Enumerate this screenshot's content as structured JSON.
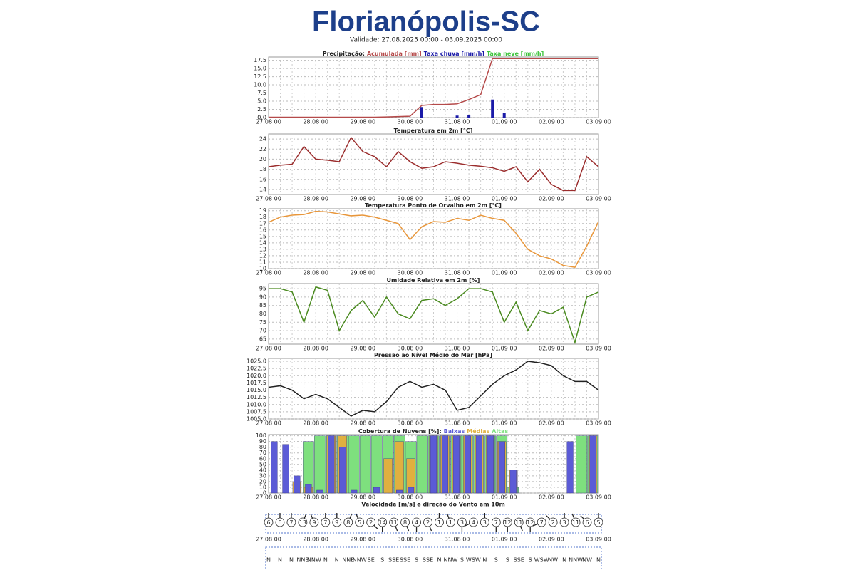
{
  "header": {
    "title": "Florianópolis-SC",
    "validity": "Validade: 27.08.2025 00:00 - 03.09.2025 00:00"
  },
  "chart_data": [
    {
      "type": "combo",
      "title": "Precipitação:",
      "categories": [
        "27.08 00",
        null,
        null,
        null,
        "28.08 00",
        null,
        null,
        null,
        "29.08 00",
        null,
        null,
        null,
        "30.08 00",
        null,
        null,
        null,
        "31.08 00",
        null,
        null,
        null,
        "01.09 00",
        null,
        null,
        null,
        "02.09 00",
        null,
        null,
        null,
        "03.09 00"
      ],
      "series": [
        {
          "name": "Acumulada [mm]",
          "type": "line",
          "color": "#b54a4a",
          "values": [
            0.1,
            0.1,
            0.1,
            0.1,
            0.1,
            0.1,
            0.1,
            0.1,
            0.1,
            0.1,
            0.2,
            0.3,
            0.4,
            3.7,
            4,
            4,
            4.2,
            5.5,
            7,
            18,
            18,
            18,
            18,
            18,
            18,
            18,
            18,
            18,
            18
          ]
        },
        {
          "name": "Taxa chuva [mm/h]",
          "type": "bar",
          "color": "#1a1aa8",
          "values": [
            0,
            0,
            0,
            0,
            0,
            0,
            0,
            0,
            0,
            0,
            0,
            0,
            0,
            3.2,
            0,
            0,
            0.6,
            0.8,
            0,
            5.5,
            1.5,
            0,
            0,
            0,
            0,
            0,
            0,
            0,
            0
          ]
        },
        {
          "name": "Taxa neve [mm/h]",
          "type": "bar",
          "color": "#3ec43e",
          "values": [
            0,
            0,
            0,
            0,
            0,
            0,
            0,
            0,
            0,
            0,
            0,
            0,
            0,
            0,
            0,
            0,
            0,
            0,
            0,
            0,
            0,
            0,
            0,
            0,
            0,
            0,
            0,
            0,
            0
          ]
        }
      ],
      "ylim": [
        0,
        18.5
      ],
      "yticks": [
        {
          "value": 0,
          "label": "0.0"
        },
        2.5,
        {
          "value": 5,
          "label": "5.0"
        },
        7.5,
        {
          "value": 10,
          "label": "10.0"
        },
        12.5,
        {
          "value": 15,
          "label": "15.0"
        },
        17.5
      ],
      "grid": true
    },
    {
      "type": "line",
      "title": "Temperatura em 2m [°C]",
      "categories": [
        "27.08 00",
        null,
        null,
        null,
        "28.08 00",
        null,
        null,
        null,
        "29.08 00",
        null,
        null,
        null,
        "30.08 00",
        null,
        null,
        null,
        "31.08 00",
        null,
        null,
        null,
        "01.09 00",
        null,
        null,
        null,
        "02.09 00",
        null,
        null,
        null,
        "03.09 00"
      ],
      "series": [
        {
          "color": "#9b2d2d",
          "values": [
            18.5,
            18.8,
            19,
            22.5,
            20,
            19.8,
            19.5,
            24.3,
            21.5,
            20.5,
            18.5,
            21.5,
            19.5,
            18.2,
            18.5,
            19.5,
            19.2,
            18.8,
            18.6,
            18.3,
            17.6,
            18.5,
            15.5,
            18,
            15,
            13.8,
            13.8,
            20.5,
            18.5
          ]
        }
      ],
      "ylim": [
        13,
        25
      ],
      "yticks": [
        14,
        16,
        18,
        20,
        22,
        24
      ],
      "grid": true
    },
    {
      "type": "line",
      "title": "Temperatura Ponto de Orvalho em 2m [°C]",
      "categories": [
        "27.08 00",
        null,
        null,
        null,
        "28.08 00",
        null,
        null,
        null,
        "29.08 00",
        null,
        null,
        null,
        "30.08 00",
        null,
        null,
        null,
        "31.08 00",
        null,
        null,
        null,
        "01.09 00",
        null,
        null,
        null,
        "02.09 00",
        null,
        null,
        null,
        "03.09 00"
      ],
      "series": [
        {
          "color": "#e8963a",
          "values": [
            17.2,
            18,
            18.3,
            18.4,
            18.9,
            18.8,
            18.5,
            18.2,
            18.3,
            18,
            17.5,
            17,
            14.5,
            16.5,
            17.3,
            17.2,
            17.8,
            17.5,
            18.3,
            17.8,
            17.5,
            15.5,
            13,
            12,
            11.5,
            10.5,
            10.2,
            13.5,
            17.3
          ]
        }
      ],
      "ylim": [
        10,
        19.3
      ],
      "yticks": [
        10,
        11,
        12,
        13,
        14,
        15,
        16,
        17,
        18,
        19
      ],
      "grid": true
    },
    {
      "type": "line",
      "title": "Umidade Relativa em 2m [%]",
      "categories": [
        "27.08 00",
        null,
        null,
        null,
        "28.08 00",
        null,
        null,
        null,
        "29.08 00",
        null,
        null,
        null,
        "30.08 00",
        null,
        null,
        null,
        "31.08 00",
        null,
        null,
        null,
        "01.09 00",
        null,
        null,
        null,
        "02.09 00",
        null,
        null,
        null,
        "03.09 00"
      ],
      "series": [
        {
          "color": "#4a8a1f",
          "values": [
            95,
            95,
            93,
            75,
            96,
            94,
            70,
            82,
            88,
            78,
            90,
            80,
            77,
            88,
            89,
            85,
            89,
            95,
            95,
            93,
            75,
            87,
            70,
            82,
            80,
            84,
            63,
            90,
            93
          ]
        }
      ],
      "ylim": [
        62,
        98
      ],
      "yticks": [
        65,
        70,
        75,
        80,
        85,
        90,
        95
      ],
      "grid": true
    },
    {
      "type": "line",
      "title": "Pressão ao Nível Médio do Mar [hPa]",
      "categories": [
        "27.08 00",
        null,
        null,
        null,
        "28.08 00",
        null,
        null,
        null,
        "29.08 00",
        null,
        null,
        null,
        "30.08 00",
        null,
        null,
        null,
        "31.08 00",
        null,
        null,
        null,
        "01.09 00",
        null,
        null,
        null,
        "02.09 00",
        null,
        null,
        null,
        "03.09 00"
      ],
      "series": [
        {
          "color": "#222222",
          "values": [
            1016,
            1016.5,
            1015,
            1012,
            1013.5,
            1012,
            1009,
            1006,
            1008,
            1007.5,
            1011,
            1016,
            1018,
            1016,
            1017,
            1015,
            1008,
            1009,
            1013,
            1017,
            1020,
            1022,
            1025,
            1024.5,
            1023.5,
            1020,
            1018,
            1018,
            1015
          ]
        }
      ],
      "ylim": [
        1005,
        1026
      ],
      "yticks": [
        {
          "value": 1005,
          "label": "1005.0"
        },
        1007.5,
        {
          "value": 1010,
          "label": "1010.0"
        },
        1012.5,
        {
          "value": 1015,
          "label": "1015.0"
        },
        1017.5,
        {
          "value": 1020,
          "label": "1020.0"
        },
        1022.5,
        {
          "value": 1025,
          "label": "1025.0"
        }
      ],
      "grid": true
    },
    {
      "type": "bar",
      "title": "Cobertura de Nuvens [%]:",
      "categories": [
        "27.08 00",
        null,
        null,
        null,
        "28.08 00",
        null,
        null,
        null,
        "29.08 00",
        null,
        null,
        null,
        "30.08 00",
        null,
        null,
        null,
        "31.08 00",
        null,
        null,
        null,
        "01.09 00",
        null,
        null,
        null,
        "02.09 00",
        null,
        null,
        null,
        "03.09 00"
      ],
      "series": [
        {
          "name": "Baixas",
          "color": "#5b5bd6",
          "values": [
            90,
            85,
            30,
            15,
            5,
            100,
            80,
            5,
            0,
            10,
            0,
            5,
            10,
            0,
            100,
            100,
            100,
            100,
            100,
            100,
            90,
            40,
            0,
            0,
            0,
            0,
            90,
            0,
            100
          ]
        },
        {
          "name": "Médias",
          "color": "#e0b040",
          "values": [
            0,
            0,
            20,
            10,
            0,
            100,
            100,
            0,
            0,
            0,
            60,
            90,
            60,
            0,
            100,
            100,
            100,
            100,
            100,
            100,
            90,
            40,
            0,
            0,
            0,
            0,
            0,
            0,
            100
          ]
        },
        {
          "name": "Altas",
          "color": "#7ee07e",
          "values": [
            0,
            0,
            0,
            90,
            100,
            100,
            100,
            100,
            100,
            100,
            100,
            100,
            90,
            100,
            100,
            100,
            100,
            100,
            100,
            100,
            100,
            10,
            0,
            0,
            0,
            0,
            0,
            100,
            100
          ]
        }
      ],
      "ylim": [
        0,
        102
      ],
      "yticks": [
        0,
        10,
        20,
        30,
        40,
        50,
        60,
        70,
        80,
        90,
        100
      ],
      "grid": true
    },
    {
      "type": "wind",
      "title": "Velocidade [m/s] e direção do Vento em 10m",
      "values": [
        6,
        6,
        7,
        13,
        9,
        7,
        9,
        8,
        5,
        2,
        14,
        11,
        8,
        4,
        2,
        1,
        1,
        3,
        4,
        3,
        7,
        12,
        11,
        12,
        7,
        2,
        3,
        11,
        6,
        5
      ],
      "categories": [
        "N",
        "N",
        "N",
        "NNE",
        "NNW",
        "N",
        "N",
        "NNE",
        "NNW",
        "SE",
        "S",
        "SSE",
        "SSE",
        "S",
        "SSE",
        "N",
        "NNW",
        "S",
        "WSW",
        "N",
        "S",
        "S",
        "SSE",
        "S",
        "WSW",
        "NW",
        "N",
        "NNW",
        "NW",
        "N"
      ],
      "dates": [
        "27.08 00",
        "28.08 00",
        "29.08 00",
        "30.08 00",
        "31.08 00",
        "01.09 00",
        "02.09 00",
        "03.09 00"
      ]
    }
  ]
}
